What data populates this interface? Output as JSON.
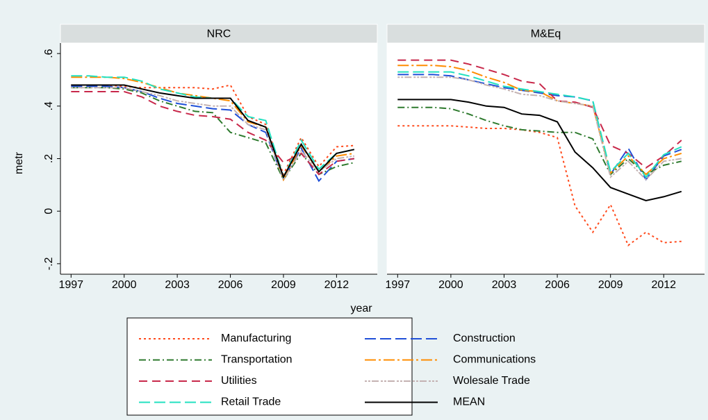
{
  "chart_data": [
    {
      "type": "line",
      "title": "NRC",
      "y_label": "metr",
      "x_label": "year",
      "legend": "bottom",
      "x": [
        1997,
        1998,
        1999,
        2000,
        2001,
        2002,
        2003,
        2004,
        2005,
        2006,
        2007,
        2008,
        2009,
        2010,
        2011,
        2012,
        2013
      ],
      "xlim": [
        1996.4,
        2014.3
      ],
      "xticks": [
        1997,
        2000,
        2003,
        2006,
        2009,
        2012
      ],
      "ylim": [
        -0.24,
        0.64
      ],
      "yticks": [
        {
          "value": 0.6,
          "label": ".6"
        },
        {
          "value": 0.4,
          "label": ".4"
        },
        {
          "value": 0.2,
          "label": ".2"
        },
        0,
        {
          "value": -0.2,
          "label": "-.2"
        }
      ],
      "series": [
        {
          "name": "Manufacturing",
          "color": "#ff4a1c",
          "values": [
            0.48,
            0.48,
            0.48,
            0.475,
            0.47,
            0.47,
            0.47,
            0.47,
            0.465,
            0.48,
            0.36,
            0.33,
            0.14,
            0.28,
            0.17,
            0.245,
            0.25
          ]
        },
        {
          "name": "Construction",
          "color": "#1f4fd8",
          "values": [
            0.475,
            0.475,
            0.475,
            0.47,
            0.455,
            0.43,
            0.41,
            0.4,
            0.39,
            0.385,
            0.33,
            0.3,
            0.12,
            0.24,
            0.115,
            0.19,
            0.2
          ]
        },
        {
          "name": "Transportation",
          "color": "#2e7a2e",
          "values": [
            0.47,
            0.47,
            0.47,
            0.465,
            0.45,
            0.42,
            0.4,
            0.38,
            0.375,
            0.3,
            0.28,
            0.26,
            0.12,
            0.22,
            0.14,
            0.17,
            0.185
          ]
        },
        {
          "name": "Communications",
          "color": "#ff8c00",
          "values": [
            0.51,
            0.51,
            0.51,
            0.505,
            0.49,
            0.47,
            0.45,
            0.44,
            0.43,
            0.42,
            0.34,
            0.32,
            0.12,
            0.25,
            0.15,
            0.21,
            0.22
          ]
        },
        {
          "name": "Utilities",
          "color": "#c8284a",
          "values": [
            0.455,
            0.455,
            0.455,
            0.455,
            0.435,
            0.4,
            0.38,
            0.365,
            0.36,
            0.35,
            0.3,
            0.27,
            0.185,
            0.22,
            0.14,
            0.19,
            0.2
          ]
        },
        {
          "name": "Wolesale Trade",
          "color": "#c4b2b2",
          "values": [
            0.47,
            0.47,
            0.47,
            0.47,
            0.455,
            0.44,
            0.42,
            0.41,
            0.4,
            0.4,
            0.33,
            0.31,
            0.12,
            0.23,
            0.15,
            0.2,
            0.21
          ]
        },
        {
          "name": "Retail Trade",
          "color": "#22e0c0",
          "values": [
            0.515,
            0.515,
            0.51,
            0.51,
            0.495,
            0.465,
            0.45,
            0.435,
            0.43,
            0.43,
            0.36,
            0.345,
            0.13,
            0.27,
            0.16,
            0.22,
            0.235
          ]
        },
        {
          "name": "MEAN",
          "color": "#000000",
          "values": [
            0.48,
            0.48,
            0.48,
            0.48,
            0.465,
            0.45,
            0.44,
            0.43,
            0.43,
            0.43,
            0.345,
            0.32,
            0.13,
            0.255,
            0.15,
            0.22,
            0.235
          ]
        }
      ]
    },
    {
      "type": "line",
      "title": "M&Eq",
      "x": [
        1997,
        1998,
        1999,
        2000,
        2001,
        2002,
        2003,
        2004,
        2005,
        2006,
        2007,
        2008,
        2009,
        2010,
        2011,
        2012,
        2013
      ],
      "xlim": [
        1996.4,
        2014.3
      ],
      "xticks": [
        1997,
        2000,
        2003,
        2006,
        2009,
        2012
      ],
      "ylim": [
        -0.24,
        0.64
      ],
      "series": [
        {
          "color": "#ff4a1c",
          "values": [
            0.325,
            0.325,
            0.325,
            0.325,
            0.32,
            0.315,
            0.315,
            0.31,
            0.3,
            0.28,
            0.02,
            -0.08,
            0.025,
            -0.13,
            -0.08,
            -0.12,
            -0.115
          ]
        },
        {
          "color": "#1f4fd8",
          "values": [
            0.52,
            0.52,
            0.52,
            0.515,
            0.5,
            0.485,
            0.47,
            0.46,
            0.45,
            0.44,
            0.435,
            0.42,
            0.14,
            0.24,
            0.12,
            0.21,
            0.235
          ]
        },
        {
          "color": "#2e7a2e",
          "values": [
            0.395,
            0.395,
            0.395,
            0.39,
            0.37,
            0.345,
            0.325,
            0.31,
            0.305,
            0.3,
            0.3,
            0.275,
            0.14,
            0.2,
            0.14,
            0.175,
            0.19
          ]
        },
        {
          "color": "#ff8c00",
          "values": [
            0.555,
            0.555,
            0.555,
            0.55,
            0.535,
            0.51,
            0.49,
            0.46,
            0.455,
            0.42,
            0.41,
            0.4,
            0.145,
            0.21,
            0.14,
            0.2,
            0.22
          ]
        },
        {
          "color": "#c8284a",
          "values": [
            0.575,
            0.575,
            0.575,
            0.575,
            0.56,
            0.54,
            0.52,
            0.495,
            0.485,
            0.42,
            0.415,
            0.395,
            0.25,
            0.22,
            0.165,
            0.21,
            0.27
          ]
        },
        {
          "color": "#c4b2b2",
          "values": [
            0.51,
            0.51,
            0.51,
            0.51,
            0.5,
            0.48,
            0.465,
            0.445,
            0.44,
            0.42,
            0.41,
            0.4,
            0.13,
            0.19,
            0.12,
            0.19,
            0.2
          ]
        },
        {
          "color": "#22e0c0",
          "values": [
            0.53,
            0.53,
            0.53,
            0.53,
            0.515,
            0.495,
            0.475,
            0.465,
            0.455,
            0.445,
            0.435,
            0.42,
            0.15,
            0.22,
            0.13,
            0.215,
            0.245
          ]
        },
        {
          "color": "#000000",
          "values": [
            0.425,
            0.425,
            0.425,
            0.425,
            0.415,
            0.4,
            0.395,
            0.37,
            0.365,
            0.34,
            0.225,
            0.165,
            0.09,
            0.065,
            0.04,
            0.055,
            0.075
          ]
        }
      ]
    }
  ]
}
